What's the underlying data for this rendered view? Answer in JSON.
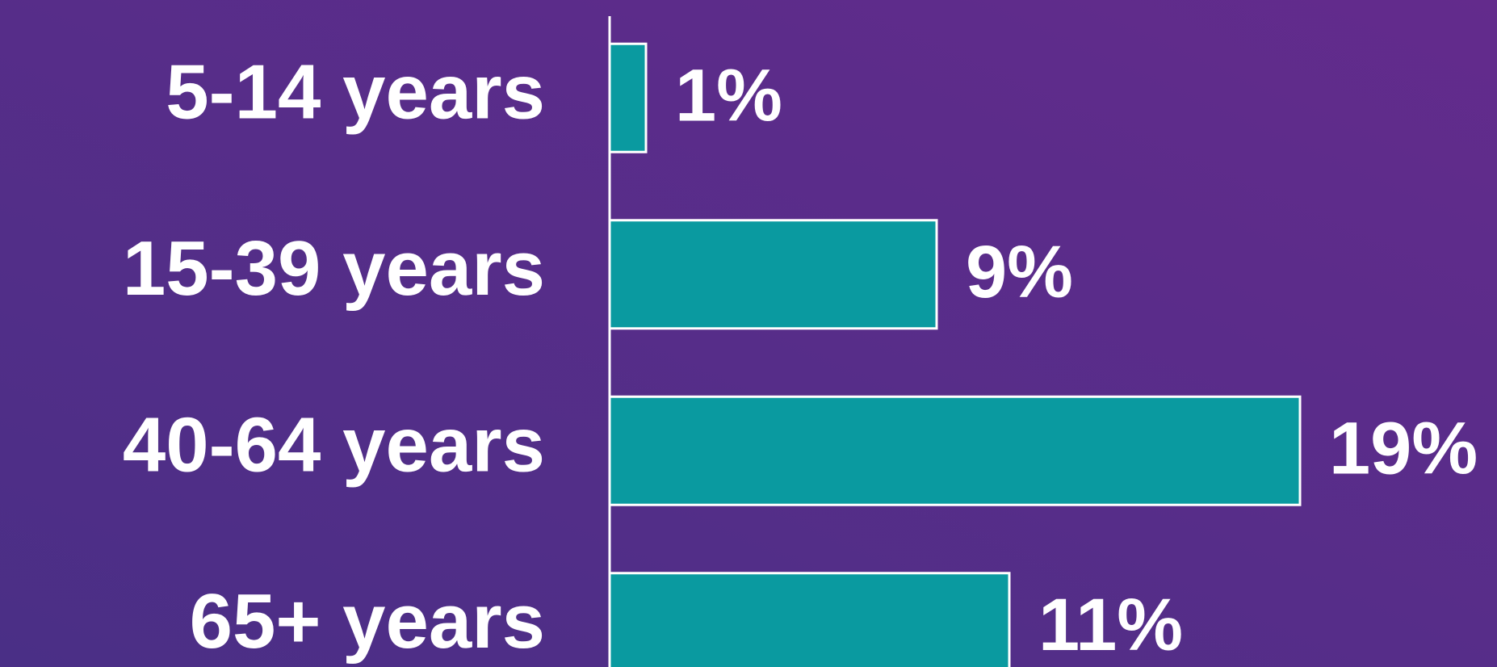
{
  "chart_data": {
    "type": "bar",
    "orientation": "horizontal",
    "categories": [
      "5-14 years",
      "15-39 years",
      "40-64 years",
      "65+ years"
    ],
    "values": [
      1,
      9,
      19,
      11
    ],
    "value_labels": [
      "1%",
      "9%",
      "19%",
      "11%"
    ],
    "color": "#0a9aa0"
  }
}
